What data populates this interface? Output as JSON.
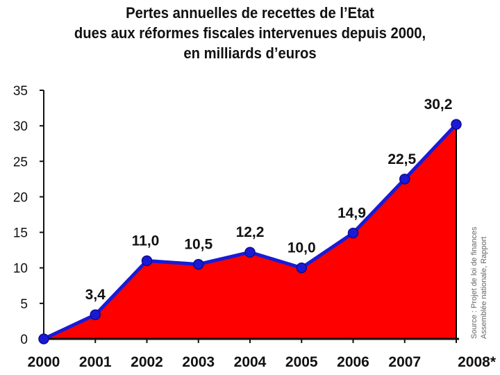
{
  "title_lines": [
    "Pertes annuelles de recettes de l’Etat",
    "dues aux réformes fiscales intervenues depuis 2000,",
    "en milliards d’euros"
  ],
  "source_lines": [
    "Source : Projet de loi de finances",
    "Assemblée nationale, Rapport"
  ],
  "colors": {
    "area": "#ff0000",
    "line": "#1a1ad6",
    "marker": "#1a1ad6",
    "axis": "#111111"
  },
  "chart_data": {
    "type": "area",
    "title": "Pertes annuelles de recettes de l’Etat dues aux réformes fiscales intervenues depuis 2000, en milliards d’euros",
    "categories": [
      "2000",
      "2001",
      "2002",
      "2003",
      "2004",
      "2005",
      "2006",
      "2007",
      "2008*"
    ],
    "values": [
      0,
      3.4,
      11.0,
      10.5,
      12.2,
      10.0,
      14.9,
      22.5,
      30.2
    ],
    "data_labels": [
      "",
      "3,4",
      "11,0",
      "10,5",
      "12,2",
      "10,0",
      "14,9",
      "22,5",
      "30,2"
    ],
    "yticks": [
      0,
      5,
      10,
      15,
      20,
      25,
      30,
      35
    ],
    "ylim": [
      0,
      35
    ],
    "xlabel": "",
    "ylabel": "",
    "grid": false,
    "legend": "none"
  }
}
